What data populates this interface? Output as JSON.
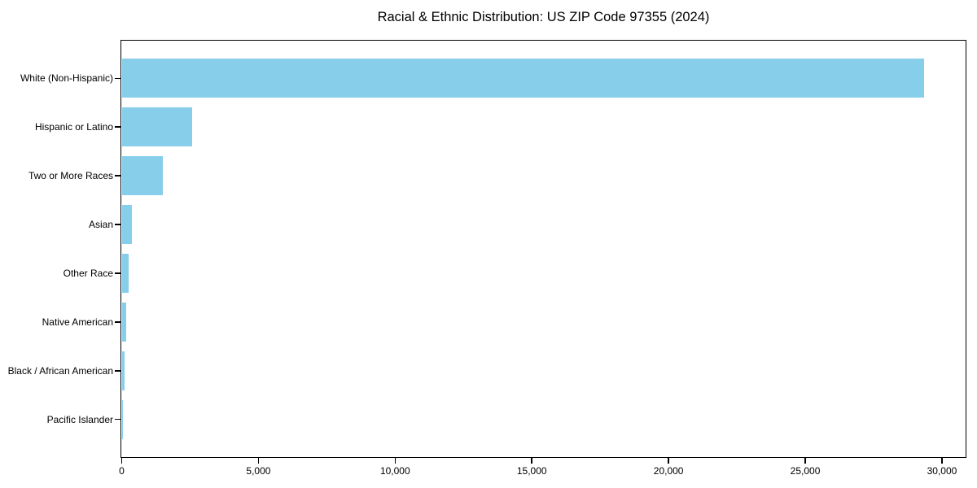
{
  "chart_data": {
    "type": "bar",
    "orientation": "horizontal",
    "title": "Racial & Ethnic Distribution: US ZIP Code 97355 (2024)",
    "categories": [
      "White (Non-Hispanic)",
      "Hispanic or Latino",
      "Two or More Races",
      "Asian",
      "Other Race",
      "Native American",
      "Black / African American",
      "Pacific Islander"
    ],
    "values": [
      29350,
      2575,
      1510,
      380,
      260,
      150,
      115,
      20
    ],
    "xlabel": "",
    "ylabel": "",
    "xlim": [
      0,
      30850
    ],
    "x_ticks": [
      0,
      5000,
      10000,
      15000,
      20000,
      25000,
      30000
    ],
    "x_tick_labels": [
      "0",
      "5,000",
      "10,000",
      "15,000",
      "20,000",
      "25,000",
      "30,000"
    ],
    "bar_color": "#87CEEB",
    "spine_color": "#000000",
    "grid": false,
    "legend_position": "none"
  }
}
